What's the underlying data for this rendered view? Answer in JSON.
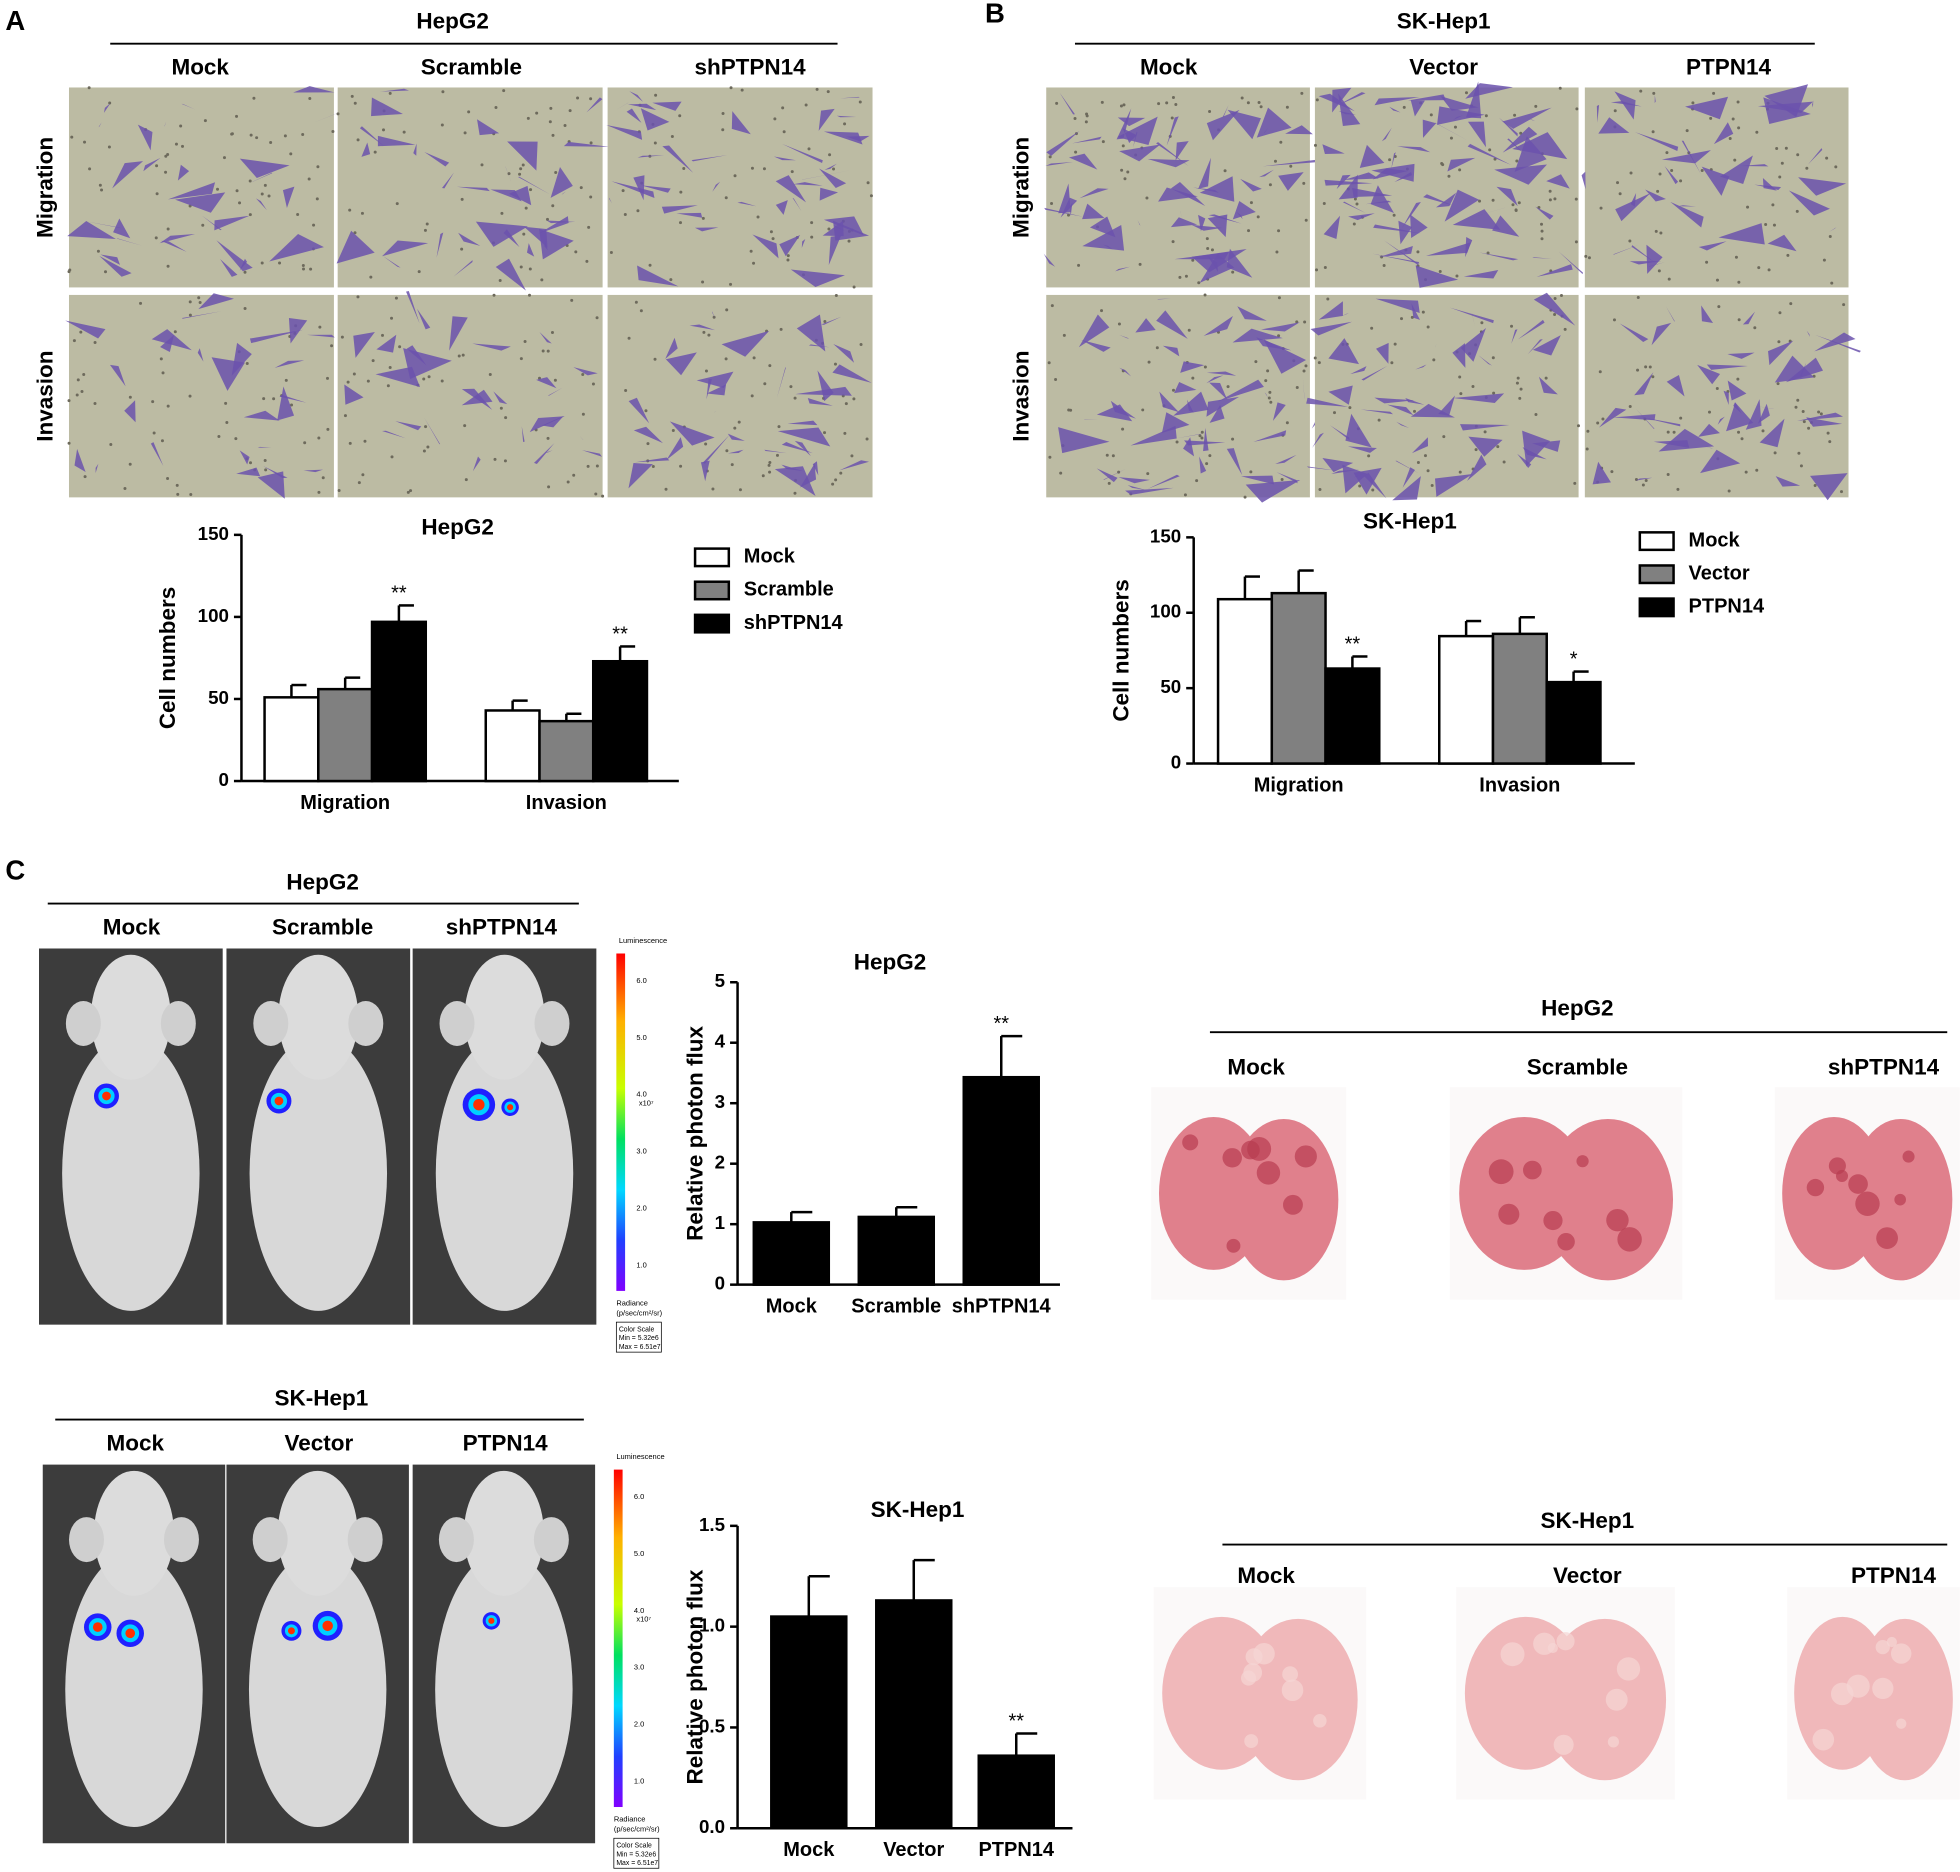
{
  "figure": {
    "panels": [
      {
        "label": "A",
        "cell_line": "HepG2",
        "columns": [
          "Mock",
          "Scramble",
          "shPTPN14"
        ],
        "rows": [
          "Migration",
          "Invasion"
        ]
      },
      {
        "label": "B",
        "cell_line": "SK-Hep1",
        "columns": [
          "Mock",
          "Vector",
          "PTPN14"
        ],
        "rows": [
          "Migration",
          "Invasion"
        ]
      },
      {
        "label": "C"
      }
    ],
    "imaging": [
      {
        "cell_line": "HepG2",
        "columns": [
          "Mock",
          "Scramble",
          "shPTPN14"
        ]
      },
      {
        "cell_line": "SK-Hep1",
        "columns": [
          "Mock",
          "Vector",
          "PTPN14"
        ]
      }
    ],
    "lungs": [
      {
        "cell_line": "HepG2",
        "columns": [
          "Mock",
          "Scramble",
          "shPTPN14"
        ]
      },
      {
        "cell_line": "SK-Hep1",
        "columns": [
          "Mock",
          "Vector",
          "PTPN14"
        ]
      }
    ],
    "colorbars": [
      {
        "title": "Luminescence",
        "ticks": [
          "6.0",
          "5.0",
          "4.0",
          "3.0",
          "2.0",
          "1.0"
        ],
        "exponent": "x10⁷",
        "unit_title": "Radiance",
        "unit": "(p/sec/cm²/sr)",
        "scale_title": "Color Scale",
        "min": "Min = 5.32e6",
        "max": "Max = 6.51e7"
      },
      {
        "title": "Luminescence",
        "ticks": [
          "6.0",
          "5.0",
          "4.0",
          "3.0",
          "2.0",
          "1.0"
        ],
        "exponent": "x10⁷",
        "unit_title": "Radiance",
        "unit": "(p/sec/cm²/sr)",
        "scale_title": "Color Scale",
        "min": "Min = 5.32e6",
        "max": "Max = 6.51e7"
      }
    ]
  },
  "chart_data": [
    {
      "type": "bar",
      "title": "HepG2",
      "y_label": "Cell numbers",
      "categories": [
        "Migration",
        "Invasion"
      ],
      "series": [
        {
          "name": "Mock",
          "color": "#ffffff",
          "values": [
            51,
            43
          ],
          "errors": [
            7.5,
            6
          ]
        },
        {
          "name": "Scramble",
          "color": "#808080",
          "values": [
            56,
            36.5
          ],
          "errors": [
            7,
            4.5
          ]
        },
        {
          "name": "shPTPN14",
          "color": "#000000",
          "values": [
            97,
            73
          ],
          "errors": [
            10,
            9
          ],
          "annotations": [
            "**",
            "**"
          ]
        }
      ],
      "ylim": [
        0,
        150
      ],
      "yticks": [
        0,
        50,
        100,
        150
      ],
      "legend": "upper right"
    },
    {
      "type": "bar",
      "title": "SK-Hep1",
      "y_label": "Cell numbers",
      "categories": [
        "Migration",
        "Invasion"
      ],
      "series": [
        {
          "name": "Mock",
          "color": "#ffffff",
          "values": [
            109,
            84.5
          ],
          "errors": [
            15,
            10
          ]
        },
        {
          "name": "Vector",
          "color": "#808080",
          "values": [
            113,
            86
          ],
          "errors": [
            15,
            11
          ]
        },
        {
          "name": "PTPN14",
          "color": "#000000",
          "values": [
            63,
            54
          ],
          "errors": [
            8,
            7
          ],
          "annotations": [
            "**",
            "*"
          ]
        }
      ],
      "ylim": [
        0,
        150
      ],
      "yticks": [
        0,
        50,
        100,
        150
      ],
      "legend": "upper right"
    },
    {
      "type": "bar",
      "title": "HepG2",
      "y_label": "Relative photon flux",
      "categories": [
        "Mock",
        "Scramble",
        "shPTPN14"
      ],
      "values": [
        1.03,
        1.12,
        3.43
      ],
      "errors": [
        0.17,
        0.16,
        0.68
      ],
      "annotations": [
        null,
        null,
        "**"
      ],
      "color": "#000000",
      "ylim": [
        0,
        5
      ],
      "yticks": [
        0,
        1,
        2,
        3,
        4,
        5
      ]
    },
    {
      "type": "bar",
      "title": "SK-Hep1",
      "y_label": "Relative photon flux",
      "categories": [
        "Mock",
        "Vector",
        "PTPN14"
      ],
      "values": [
        1.05,
        1.13,
        0.36
      ],
      "errors": [
        0.2,
        0.2,
        0.11
      ],
      "annotations": [
        null,
        null,
        "**"
      ],
      "color": "#000000",
      "ylim": [
        0,
        1.5
      ],
      "yticks": [
        {
          "value": 0,
          "label": "0.0"
        },
        0.5,
        {
          "value": 1,
          "label": "1.0"
        },
        1.5
      ]
    }
  ]
}
